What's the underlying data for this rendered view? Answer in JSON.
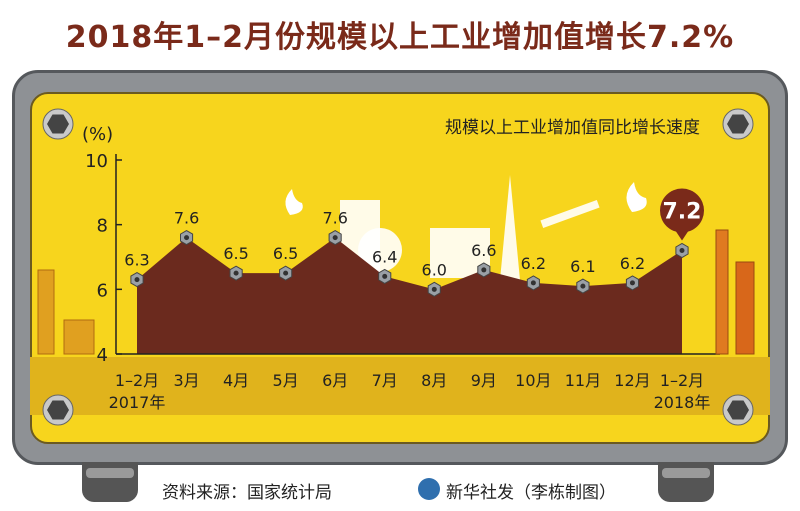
{
  "title": "2018年1–2月份规模以上工业增加值增长7.2%",
  "footer": {
    "source": "资料来源：国家统计局",
    "credit": "新华社发（李栋制图）"
  },
  "colors": {
    "area": "#6b2a1e",
    "panel": "#f7d51d",
    "highlight": "#7a2a1a",
    "marker": "#9aa0a6"
  },
  "icons": [
    "bolt-icon",
    "flame-icon",
    "factory-icon",
    "oil-derrick-icon",
    "pump-jack-icon",
    "chimney-icon",
    "xinhua-logo-icon"
  ],
  "chart_data": {
    "type": "area",
    "title": "规模以上工业增加值同比增长速度",
    "ylabel": "(%)",
    "ylim": [
      4,
      10
    ],
    "yticks": [
      4,
      6,
      8,
      10
    ],
    "categories": [
      "1–2月",
      "3月",
      "4月",
      "5月",
      "6月",
      "7月",
      "8月",
      "9月",
      "10月",
      "11月",
      "12月",
      "1–2月"
    ],
    "year_labels": [
      "2017年",
      "",
      "",
      "",
      "",
      "",
      "",
      "",
      "",
      "",
      "",
      "2018年"
    ],
    "values": [
      6.3,
      7.6,
      6.5,
      6.5,
      7.6,
      6.4,
      6.0,
      6.6,
      6.2,
      6.1,
      6.2,
      7.2
    ],
    "value_labels": [
      "6.3",
      "7.6",
      "6.5",
      "6.5",
      "7.6",
      "6.4",
      "6.0",
      "6.6",
      "6.2",
      "6.1",
      "6.2",
      "7.2"
    ],
    "highlight_index": 11
  }
}
